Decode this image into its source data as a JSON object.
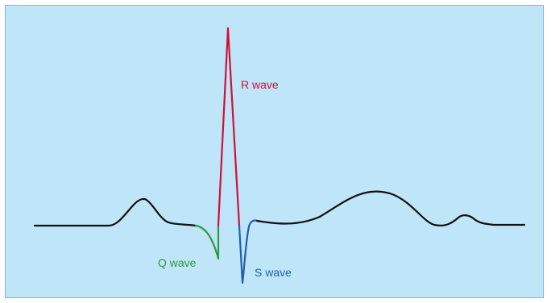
{
  "labels": {
    "r_wave": "R wave",
    "q_wave": "Q wave",
    "s_wave": "S wave"
  },
  "colors": {
    "background": "#bfe5f8",
    "baseline_trace": "#111111",
    "r_wave": "#d0103a",
    "q_wave": "#2e9b3e",
    "s_wave": "#1f5fb0"
  }
}
